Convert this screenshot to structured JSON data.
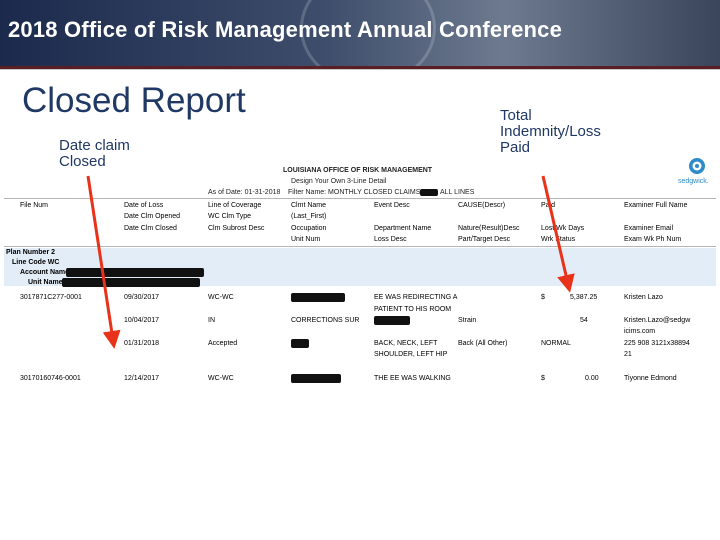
{
  "header": {
    "title": "2018 Office of Risk Management Annual Conference"
  },
  "slide": {
    "title": "Closed Report",
    "annotation_left": [
      "Date claim",
      "Closed"
    ],
    "annotation_right": [
      "Total",
      "Indemnity/Loss",
      "Paid"
    ]
  },
  "report": {
    "org": "LOUISIANA OFFICE OF RISK MANAGEMENT",
    "design": "Design Your Own 3-Line Detail",
    "asof": "As of Date: 01-31-2018",
    "filter": "Filter Name: MONTHLY CLOSED CLAIMS",
    "filter_tail": "ALL LINES",
    "logo_text": "sedgwick.",
    "col_headers": [
      [
        "File Num",
        "Date of Loss",
        "Line of Coverage",
        "Clmt Name",
        "Event Desc",
        "CAUSE(Descr)",
        "Paid",
        "Examiner Full Name"
      ],
      [
        "",
        "Date Clm Opened",
        "WC Clm Type",
        "(Last_First)",
        "",
        "",
        "",
        ""
      ],
      [
        "",
        "Date Clm Closed",
        "Clm Subrost Desc",
        "Occupation",
        "Department Name",
        "Nature(Result)Desc",
        "Lost Wk Days",
        "Examiner Email"
      ],
      [
        "",
        "",
        "",
        "Unit Num",
        "Loss Desc",
        "Part/Target Desc",
        "Wrk Status",
        "Exam Wk Ph Num"
      ]
    ],
    "group": {
      "plan": "Plan Number 2",
      "line": "Line Code WC",
      "account": "Account Name",
      "unit": "Unit Name"
    },
    "rows": [
      {
        "file": "3017871C277-0001",
        "date_loss": "09/30/2017",
        "line": "WC-WC",
        "event": "EE WAS REDIRECTING A",
        "event2": "PATIENT TO HIS ROOM",
        "currency": "$",
        "paid": "5,387.25",
        "examiner": "Kristen Lazo",
        "opened": "10/04/2017",
        "clm_type": "IN",
        "occupation": "CORRECTIONS SUR",
        "cause": "Strain",
        "lost_days": "54",
        "email": "Kristen.Lazo@sedgw",
        "email2": "icims.com",
        "closed": "01/31/2018",
        "subro": "Accepted",
        "loss": "BACK, NECK, LEFT",
        "loss2": "SHOULDER, LEFT HIP",
        "part": "Back (All Other)",
        "status": "NORMAL",
        "phone": "225 908 3121x38894",
        "phone2": "21"
      },
      {
        "file": "30170160746-0001",
        "date_loss": "12/14/2017",
        "line": "WC-WC",
        "event": "THE EE WAS WALKING",
        "currency": "$",
        "paid": "0.00",
        "examiner": "Tiyonne Edmond"
      }
    ]
  }
}
